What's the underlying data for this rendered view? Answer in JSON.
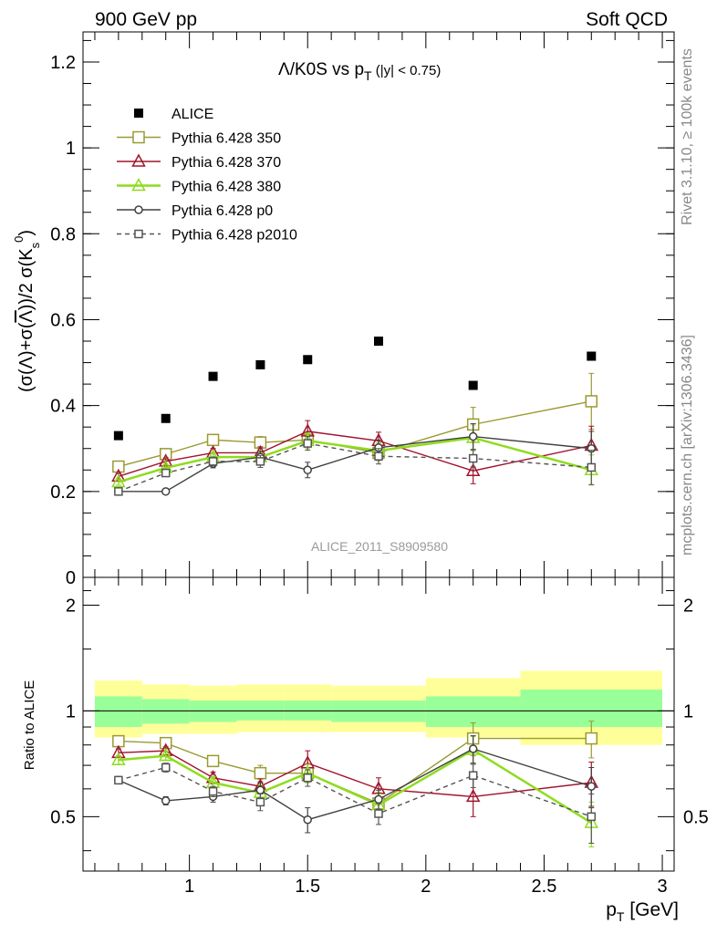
{
  "header": {
    "left": "900 GeV pp",
    "right": "Soft QCD"
  },
  "side_labels": {
    "rivet": "Rivet 3.1.10, ≥ 100k events",
    "url": "mcplots.cern.ch [arXiv:1306.3436]"
  },
  "chart_data": [
    {
      "type": "scatter",
      "panel": "main",
      "title": "Λ/K0S vs p_T (|y| < 0.75)",
      "ylabel": "(σ(Λ)+σ(anti-Λ))/2 σ(K0s)",
      "watermark": "ALICE_2011_S8909580",
      "xlim": [
        0.55,
        3.05
      ],
      "ylim": [
        0,
        1.27
      ],
      "yticks": [
        0,
        0.2,
        0.4,
        0.6,
        0.8,
        1,
        1.2
      ],
      "ytick_labels": [
        "0",
        "0.2",
        "0.4",
        "0.6",
        "0.8",
        "1",
        "1.2"
      ],
      "legend_position": "top-left",
      "series": [
        {
          "name": "ALICE",
          "style": "data",
          "color": "#000000",
          "marker": "filled-square",
          "x": [
            0.7,
            0.9,
            1.1,
            1.3,
            1.5,
            1.8,
            2.2,
            2.7
          ],
          "y": [
            0.33,
            0.37,
            0.468,
            0.495,
            0.507,
            0.55,
            0.447,
            0.515
          ]
        },
        {
          "name": "Pythia 6.428 350",
          "style": "solid",
          "color": "#9a9a32",
          "marker": "open-square",
          "x": [
            0.7,
            0.9,
            1.1,
            1.3,
            1.5,
            1.8,
            2.2,
            2.7
          ],
          "y": [
            0.258,
            0.287,
            0.32,
            0.314,
            0.32,
            0.29,
            0.356,
            0.41
          ],
          "err": [
            0.007,
            0.008,
            0.01,
            0.014,
            0.016,
            0.018,
            0.04,
            0.065
          ]
        },
        {
          "name": "Pythia 6.428 370",
          "style": "solid",
          "color": "#a0142d",
          "marker": "open-triangle",
          "x": [
            0.7,
            0.9,
            1.1,
            1.3,
            1.5,
            1.8,
            2.2,
            2.7
          ],
          "y": [
            0.235,
            0.27,
            0.29,
            0.29,
            0.34,
            0.318,
            0.248,
            0.307
          ],
          "err": [
            0.007,
            0.008,
            0.01,
            0.014,
            0.025,
            0.02,
            0.03,
            0.045
          ]
        },
        {
          "name": "Pythia 6.428 380",
          "style": "solid",
          "color": "#8edc1e",
          "marker": "open-triangle",
          "x": [
            0.7,
            0.9,
            1.1,
            1.3,
            1.5,
            1.8,
            2.2,
            2.7
          ],
          "y": [
            0.222,
            0.255,
            0.28,
            0.28,
            0.318,
            0.295,
            0.325,
            0.25
          ],
          "err": [
            0.007,
            0.008,
            0.01,
            0.014,
            0.018,
            0.018,
            0.03,
            0.035
          ]
        },
        {
          "name": "Pythia 6.428 p0",
          "style": "solid",
          "color": "#404040",
          "marker": "open-circle",
          "x": [
            0.7,
            0.9,
            1.1,
            1.3,
            1.5,
            1.8,
            2.2,
            2.7
          ],
          "y": [
            0.2,
            0.2,
            0.265,
            0.28,
            0.25,
            0.302,
            0.328,
            0.3
          ],
          "err": [
            0.004,
            0.005,
            0.01,
            0.014,
            0.018,
            0.018,
            0.03,
            0.04
          ]
        },
        {
          "name": "Pythia 6.428 p2010",
          "style": "dashed",
          "color": "#555555",
          "marker": "open-square-small",
          "x": [
            0.7,
            0.9,
            1.1,
            1.3,
            1.5,
            1.8,
            2.2,
            2.7
          ],
          "y": [
            0.2,
            0.243,
            0.27,
            0.27,
            0.312,
            0.282,
            0.277,
            0.256
          ],
          "err": [
            0.005,
            0.008,
            0.01,
            0.014,
            0.016,
            0.018,
            0.02,
            0.04
          ]
        }
      ]
    },
    {
      "type": "line",
      "panel": "ratio",
      "ylabel": "Ratio to ALICE",
      "xlabel": "p_T [GeV]",
      "xlim": [
        0.55,
        3.05
      ],
      "xticks": [
        1,
        1.5,
        2,
        2.5,
        3
      ],
      "xtick_labels": [
        "1",
        "1.5",
        "2",
        "2.5",
        "3"
      ],
      "ylim": [
        0.35,
        2.4
      ],
      "yscale": "log",
      "yticks": [
        0.5,
        1,
        2
      ],
      "ytick_labels": [
        "0.5",
        "1",
        "2"
      ],
      "bands": {
        "bins": [
          [
            0.6,
            0.8
          ],
          [
            0.8,
            1.0
          ],
          [
            1.0,
            1.2
          ],
          [
            1.2,
            1.4
          ],
          [
            1.4,
            1.6
          ],
          [
            1.6,
            2.0
          ],
          [
            2.0,
            2.4
          ],
          [
            2.4,
            3.0
          ]
        ],
        "stat_low": [
          0.9,
          0.92,
          0.93,
          0.94,
          0.94,
          0.93,
          0.9,
          0.9
        ],
        "stat_high": [
          1.1,
          1.08,
          1.07,
          1.07,
          1.07,
          1.07,
          1.1,
          1.15
        ],
        "total_low": [
          0.84,
          0.86,
          0.86,
          0.87,
          0.87,
          0.87,
          0.84,
          0.8
        ],
        "total_high": [
          1.22,
          1.19,
          1.18,
          1.19,
          1.19,
          1.18,
          1.24,
          1.3
        ],
        "stat_color": "#99ff99",
        "total_color": "#ffff99"
      },
      "series": [
        {
          "name": "Pythia 6.428 350",
          "color": "#9a9a32",
          "marker": "open-square",
          "style": "solid",
          "x": [
            0.7,
            0.9,
            1.1,
            1.3,
            1.5,
            1.8,
            2.2,
            2.7
          ],
          "y": [
            0.82,
            0.81,
            0.72,
            0.665,
            0.665,
            0.545,
            0.835,
            0.835
          ],
          "err": [
            0.02,
            0.02,
            0.025,
            0.035,
            0.04,
            0.04,
            0.09,
            0.1
          ]
        },
        {
          "name": "Pythia 6.428 370",
          "color": "#a0142d",
          "marker": "open-triangle",
          "style": "solid",
          "x": [
            0.7,
            0.9,
            1.1,
            1.3,
            1.5,
            1.8,
            2.2,
            2.7
          ],
          "y": [
            0.76,
            0.77,
            0.645,
            0.61,
            0.71,
            0.6,
            0.57,
            0.625
          ],
          "err": [
            0.02,
            0.02,
            0.025,
            0.03,
            0.06,
            0.045,
            0.07,
            0.09
          ]
        },
        {
          "name": "Pythia 6.428 380",
          "color": "#8edc1e",
          "marker": "open-triangle",
          "style": "solid",
          "x": [
            0.7,
            0.9,
            1.1,
            1.3,
            1.5,
            1.8,
            2.2,
            2.7
          ],
          "y": [
            0.725,
            0.745,
            0.625,
            0.585,
            0.665,
            0.54,
            0.775,
            0.48
          ],
          "err": [
            0.02,
            0.02,
            0.025,
            0.03,
            0.04,
            0.04,
            0.07,
            0.07
          ]
        },
        {
          "name": "Pythia 6.428 p0",
          "color": "#404040",
          "marker": "open-circle",
          "style": "solid",
          "x": [
            0.7,
            0.9,
            1.1,
            1.3,
            1.5,
            1.8,
            2.2,
            2.7
          ],
          "y": [
            0.635,
            0.555,
            0.57,
            0.595,
            0.49,
            0.56,
            0.78,
            0.61
          ],
          "err": [
            0.015,
            0.015,
            0.02,
            0.03,
            0.04,
            0.035,
            0.07,
            0.08
          ]
        },
        {
          "name": "Pythia 6.428 p2010",
          "color": "#555555",
          "marker": "open-square-small",
          "style": "dashed",
          "x": [
            0.7,
            0.9,
            1.1,
            1.3,
            1.5,
            1.8,
            2.2,
            2.7
          ],
          "y": [
            0.635,
            0.69,
            0.59,
            0.55,
            0.645,
            0.51,
            0.655,
            0.5
          ],
          "err": [
            0.015,
            0.02,
            0.02,
            0.03,
            0.035,
            0.035,
            0.05,
            0.08
          ]
        }
      ]
    }
  ]
}
